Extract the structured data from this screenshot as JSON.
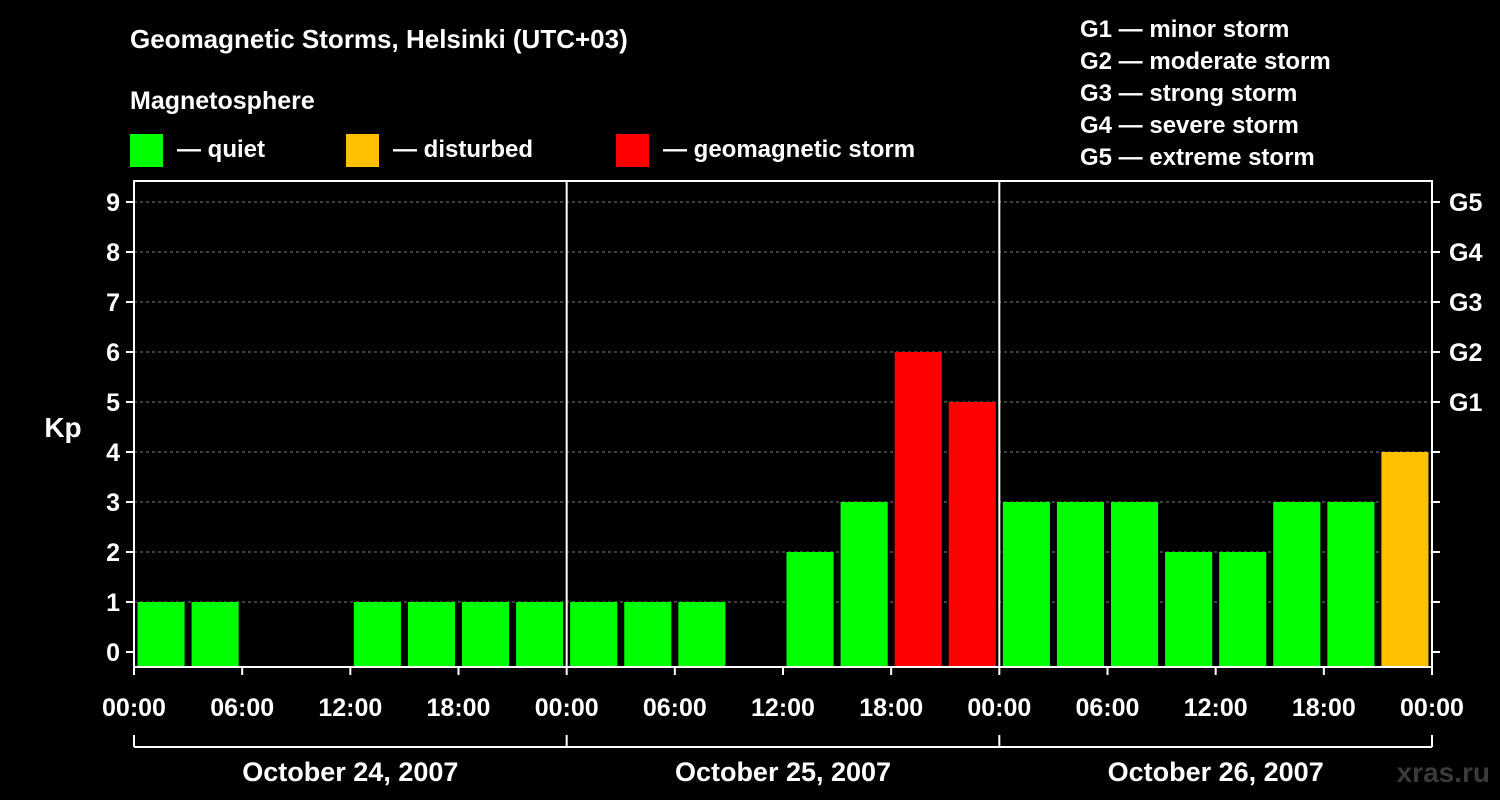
{
  "colors": {
    "background": "#000000",
    "quiet": "#00ff00",
    "disturbed": "#ffc000",
    "storm": "#ff0000",
    "axis": "#ffffff",
    "grid": "#808080",
    "watermark": "#3a3a3a"
  },
  "header": {
    "title": "Geomagnetic Storms, Helsinki (UTC+03)",
    "subtitle": "Magnetosphere"
  },
  "legend": [
    {
      "label": "— quiet",
      "color": "#00ff00"
    },
    {
      "label": "— disturbed",
      "color": "#ffc000"
    },
    {
      "label": "— geomagnetic storm",
      "color": "#ff0000"
    }
  ],
  "storm_scale": [
    "G1 — minor storm",
    "G2 — moderate storm",
    "G3 — strong storm",
    "G4 — severe storm",
    "G5 — extreme storm"
  ],
  "watermark": "xras.ru",
  "chart_data": {
    "type": "bar",
    "ylabel": "Kp",
    "ylim": [
      0,
      9
    ],
    "yticks": [
      "0",
      "1",
      "2",
      "3",
      "4",
      "5",
      "6",
      "7",
      "8",
      "9"
    ],
    "right_ticks": [
      {
        "kp": 5,
        "label": "G1"
      },
      {
        "kp": 6,
        "label": "G2"
      },
      {
        "kp": 7,
        "label": "G3"
      },
      {
        "kp": 8,
        "label": "G4"
      },
      {
        "kp": 9,
        "label": "G5"
      }
    ],
    "xtick_labels": [
      "00:00",
      "06:00",
      "12:00",
      "18:00",
      "00:00",
      "06:00",
      "12:00",
      "18:00",
      "00:00",
      "06:00",
      "12:00",
      "18:00",
      "00:00"
    ],
    "days": [
      "October 24, 2007",
      "October 25, 2007",
      "October 26, 2007"
    ],
    "interval_hours": 3,
    "grid": "horizontal dashed",
    "values": [
      1,
      1,
      0,
      0,
      1,
      1,
      1,
      1,
      1,
      1,
      1,
      0,
      2,
      3,
      6,
      5,
      3,
      3,
      3,
      2,
      2,
      3,
      3,
      4
    ],
    "categories": [
      "quiet",
      "quiet",
      "quiet",
      "quiet",
      "quiet",
      "quiet",
      "quiet",
      "quiet",
      "quiet",
      "quiet",
      "quiet",
      "quiet",
      "quiet",
      "quiet",
      "storm",
      "storm",
      "quiet",
      "quiet",
      "quiet",
      "quiet",
      "quiet",
      "quiet",
      "quiet",
      "disturbed"
    ]
  }
}
